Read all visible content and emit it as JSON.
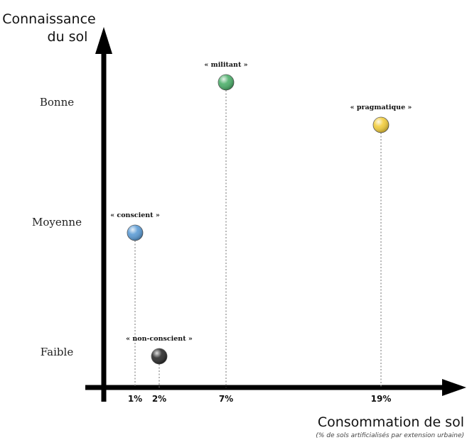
{
  "chart_data": {
    "type": "scatter",
    "ylabel": "Connaissance du sol",
    "ylabel_lines": [
      "Connaissance",
      "du sol"
    ],
    "xlabel": "Consommation de sol",
    "xlabel_sub": "(% de sols artificialisés par extension urbaine)",
    "y_categories": [
      "Faible",
      "Moyenne",
      "Bonne"
    ],
    "x_ticks": [
      {
        "value": 1,
        "label": "1%"
      },
      {
        "value": 2,
        "label": "2%"
      },
      {
        "value": 7,
        "label": "7%"
      },
      {
        "value": 19,
        "label": "19%"
      }
    ],
    "points": [
      {
        "label": "« conscient »",
        "x": 1,
        "y": "Moyenne",
        "color": "#5b9bd5"
      },
      {
        "label": "« non-conscient »",
        "x": 2,
        "y": "Faible",
        "color": "#2b2b2b"
      },
      {
        "label": "« militant »",
        "x": 7,
        "y": "Bonne",
        "color": "#4caf6a"
      },
      {
        "label": "« pragmatique »",
        "x": 19,
        "y": "Bonne",
        "color": "#f2cd3c"
      }
    ],
    "grid": false,
    "legend": "none"
  }
}
